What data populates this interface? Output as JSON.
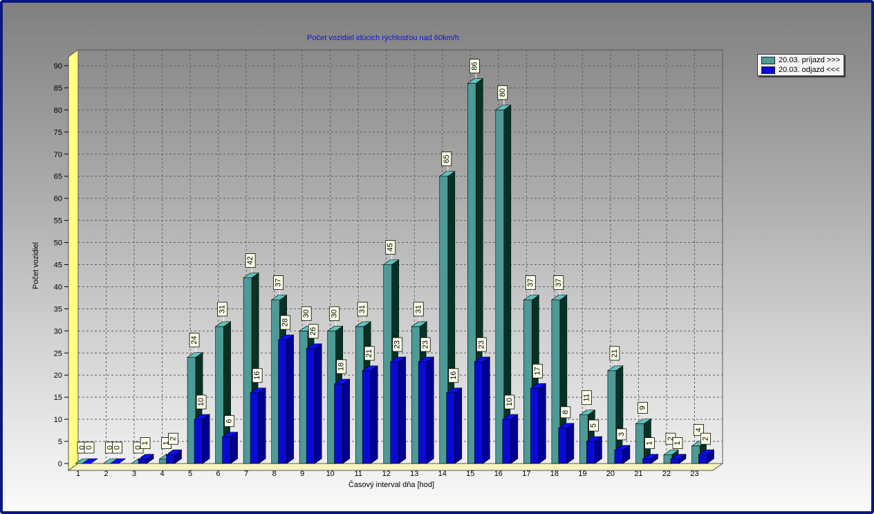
{
  "chart_data": {
    "type": "bar",
    "title": "Počet vozidiel idúcich rýchlosťou nad 60km/h",
    "xlabel": "Časový interval dňa [hod]",
    "ylabel": "Počet vozidiel",
    "ylim": [
      0,
      90
    ],
    "y_ticks": [
      0,
      5,
      10,
      15,
      20,
      25,
      30,
      35,
      40,
      45,
      50,
      55,
      60,
      65,
      70,
      75,
      80,
      85,
      90
    ],
    "categories": [
      "1",
      "2",
      "3",
      "4",
      "5",
      "6",
      "7",
      "8",
      "9",
      "10",
      "11",
      "12",
      "13",
      "14",
      "15",
      "16",
      "17",
      "18",
      "19",
      "20",
      "21",
      "22",
      "23"
    ],
    "grid": true,
    "legend_position": "top-right",
    "series": [
      {
        "name": "20.03.  príjazd >>>",
        "color": "#4e9a96",
        "values": [
          0,
          0,
          0,
          1,
          24,
          31,
          42,
          37,
          30,
          30,
          31,
          45,
          31,
          65,
          86,
          80,
          37,
          37,
          11,
          21,
          9,
          2,
          4
        ],
        "data_labels": [
          "0",
          "0",
          "0",
          "1",
          "24",
          "31",
          "42",
          "37",
          "30",
          "30",
          "31",
          "45",
          "31",
          "65",
          "86",
          "80",
          "37",
          "37",
          "11",
          "21",
          "9",
          "2",
          "4"
        ]
      },
      {
        "name": "20.03.  odjazd <<<",
        "color": "#0a0ad8",
        "values": [
          0,
          0,
          1,
          2,
          10,
          6,
          16,
          28,
          26,
          18,
          21,
          23,
          23,
          16,
          23,
          10,
          17,
          8,
          5,
          3,
          1,
          1,
          2
        ],
        "data_labels": [
          "0",
          "0",
          "1",
          "2",
          "10",
          "6",
          "16",
          "28",
          "26",
          "18",
          "21",
          "23",
          "23",
          "16",
          "23",
          "10",
          "17",
          "8",
          "5",
          "3",
          "1",
          "1",
          "2"
        ]
      }
    ]
  }
}
